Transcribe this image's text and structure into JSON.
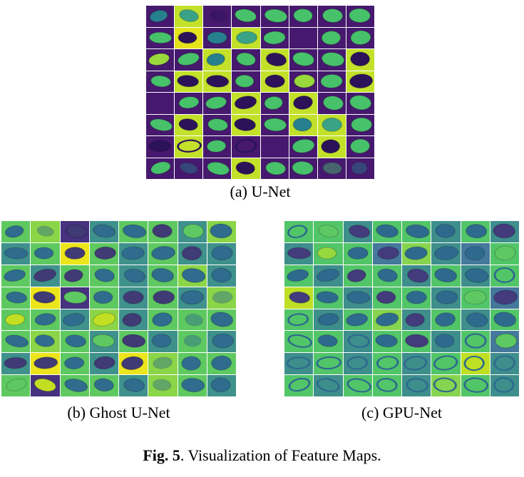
{
  "figure": {
    "captions": {
      "a": "(a) U-Net",
      "b": "(b) Ghost U-Net",
      "c": "(c) GPU-Net"
    },
    "fig_label": "Fig. 5",
    "fig_text": ". Visualization of Feature Maps."
  },
  "grids": {
    "a": {
      "cols": 8,
      "rows": 8,
      "palette": [
        "#46196e",
        "#c3e12b",
        "#48c16b",
        "#27808e",
        "#2c1259",
        "#9ad93c",
        "#e5e41c",
        "#3aa387"
      ],
      "cells": [
        [
          0,
          3,
          0
        ],
        [
          1,
          7,
          0
        ],
        [
          0,
          4,
          1
        ],
        [
          0,
          2,
          0
        ],
        [
          0,
          2,
          0
        ],
        [
          0,
          2,
          0
        ],
        [
          0,
          2,
          0
        ],
        [
          0,
          2,
          0
        ],
        [
          0,
          2,
          0
        ],
        [
          6,
          4,
          0
        ],
        [
          0,
          3,
          0
        ],
        [
          1,
          7,
          0
        ],
        [
          0,
          2,
          0
        ],
        [
          0,
          0,
          3
        ],
        [
          0,
          2,
          0
        ],
        [
          0,
          2,
          0
        ],
        [
          0,
          5,
          0
        ],
        [
          0,
          2,
          0
        ],
        [
          1,
          3,
          0
        ],
        [
          0,
          2,
          0
        ],
        [
          1,
          4,
          0
        ],
        [
          0,
          2,
          0
        ],
        [
          0,
          2,
          0
        ],
        [
          1,
          4,
          0
        ],
        [
          0,
          2,
          0
        ],
        [
          1,
          4,
          0
        ],
        [
          1,
          4,
          0
        ],
        [
          0,
          2,
          0
        ],
        [
          1,
          4,
          0
        ],
        [
          0,
          5,
          0
        ],
        [
          0,
          2,
          0
        ],
        [
          1,
          4,
          0
        ],
        [
          0,
          0,
          3
        ],
        [
          0,
          2,
          0
        ],
        [
          0,
          2,
          0
        ],
        [
          1,
          4,
          0
        ],
        [
          0,
          2,
          0
        ],
        [
          1,
          4,
          0
        ],
        [
          0,
          2,
          0
        ],
        [
          0,
          2,
          0
        ],
        [
          0,
          2,
          0
        ],
        [
          1,
          4,
          0
        ],
        [
          0,
          2,
          0
        ],
        [
          1,
          4,
          0
        ],
        [
          0,
          2,
          0
        ],
        [
          1,
          3,
          0
        ],
        [
          1,
          7,
          0
        ],
        [
          0,
          2,
          0
        ],
        [
          0,
          4,
          0
        ],
        [
          1,
          4,
          2
        ],
        [
          0,
          2,
          0
        ],
        [
          0,
          4,
          2
        ],
        [
          0,
          0,
          3
        ],
        [
          0,
          2,
          0
        ],
        [
          1,
          4,
          0
        ],
        [
          0,
          2,
          0
        ],
        [
          0,
          2,
          0
        ],
        [
          0,
          3,
          1
        ],
        [
          0,
          2,
          0
        ],
        [
          1,
          4,
          0
        ],
        [
          0,
          2,
          0
        ],
        [
          0,
          2,
          0
        ],
        [
          0,
          2,
          1
        ],
        [
          0,
          3,
          1
        ]
      ]
    },
    "b": {
      "cols": 8,
      "rows": 8,
      "palette": [
        "#5fc961",
        "#3f918c",
        "#46327e",
        "#ece51b",
        "#2f6c8e",
        "#403a75",
        "#5ec962",
        "#c2df23",
        "#8bd548"
      ],
      "cells": [
        [
          0,
          4,
          0
        ],
        [
          8,
          4,
          1
        ],
        [
          2,
          5,
          0
        ],
        [
          1,
          4,
          0
        ],
        [
          0,
          4,
          0
        ],
        [
          0,
          5,
          0
        ],
        [
          1,
          6,
          0
        ],
        [
          8,
          4,
          0
        ],
        [
          1,
          4,
          0
        ],
        [
          0,
          4,
          0
        ],
        [
          3,
          5,
          0
        ],
        [
          0,
          5,
          0
        ],
        [
          1,
          4,
          0
        ],
        [
          0,
          4,
          0
        ],
        [
          1,
          5,
          0
        ],
        [
          1,
          4,
          0
        ],
        [
          0,
          4,
          0
        ],
        [
          1,
          5,
          0
        ],
        [
          0,
          5,
          0
        ],
        [
          0,
          4,
          0
        ],
        [
          1,
          4,
          0
        ],
        [
          0,
          4,
          0
        ],
        [
          8,
          4,
          0
        ],
        [
          1,
          4,
          0
        ],
        [
          0,
          4,
          0
        ],
        [
          3,
          5,
          0
        ],
        [
          2,
          6,
          0
        ],
        [
          0,
          4,
          0
        ],
        [
          1,
          5,
          0
        ],
        [
          0,
          5,
          0
        ],
        [
          1,
          4,
          0
        ],
        [
          8,
          4,
          1
        ],
        [
          0,
          7,
          0
        ],
        [
          0,
          4,
          0
        ],
        [
          1,
          4,
          0
        ],
        [
          8,
          7,
          0
        ],
        [
          1,
          5,
          0
        ],
        [
          0,
          4,
          0
        ],
        [
          0,
          4,
          1
        ],
        [
          0,
          4,
          0
        ],
        [
          0,
          4,
          0
        ],
        [
          8,
          4,
          0
        ],
        [
          0,
          4,
          0
        ],
        [
          1,
          6,
          0
        ],
        [
          0,
          5,
          0
        ],
        [
          1,
          4,
          0
        ],
        [
          0,
          4,
          1
        ],
        [
          1,
          4,
          0
        ],
        [
          1,
          5,
          0
        ],
        [
          3,
          5,
          0
        ],
        [
          0,
          4,
          0
        ],
        [
          1,
          5,
          0
        ],
        [
          3,
          5,
          0
        ],
        [
          8,
          4,
          1
        ],
        [
          0,
          4,
          0
        ],
        [
          0,
          4,
          0
        ],
        [
          0,
          6,
          0
        ],
        [
          2,
          7,
          0
        ],
        [
          0,
          4,
          0
        ],
        [
          0,
          4,
          0
        ],
        [
          1,
          4,
          0
        ],
        [
          8,
          4,
          1
        ],
        [
          0,
          4,
          0
        ],
        [
          1,
          4,
          0
        ]
      ]
    },
    "c": {
      "cols": 8,
      "rows": 8,
      "palette": [
        "#52c569",
        "#3e8e8c",
        "#44799c",
        "#bfdf25",
        "#2e6a8e",
        "#433b7c",
        "#5ec962",
        "#97d83e",
        "#86d44f"
      ],
      "cells": [
        [
          0,
          4,
          2
        ],
        [
          0,
          6,
          0
        ],
        [
          1,
          5,
          0
        ],
        [
          0,
          4,
          0
        ],
        [
          0,
          4,
          0
        ],
        [
          1,
          4,
          0
        ],
        [
          0,
          4,
          0
        ],
        [
          1,
          5,
          0
        ],
        [
          1,
          5,
          0
        ],
        [
          0,
          7,
          0
        ],
        [
          0,
          4,
          0
        ],
        [
          2,
          5,
          0
        ],
        [
          8,
          4,
          0
        ],
        [
          1,
          4,
          0
        ],
        [
          2,
          4,
          0
        ],
        [
          0,
          6,
          0
        ],
        [
          0,
          4,
          0
        ],
        [
          1,
          4,
          0
        ],
        [
          0,
          5,
          0
        ],
        [
          0,
          4,
          0
        ],
        [
          1,
          5,
          0
        ],
        [
          0,
          4,
          0
        ],
        [
          1,
          4,
          0
        ],
        [
          0,
          4,
          2
        ],
        [
          3,
          5,
          0
        ],
        [
          0,
          4,
          0
        ],
        [
          1,
          4,
          0
        ],
        [
          0,
          5,
          0
        ],
        [
          0,
          4,
          0
        ],
        [
          1,
          4,
          0
        ],
        [
          0,
          6,
          0
        ],
        [
          2,
          5,
          0
        ],
        [
          0,
          4,
          2
        ],
        [
          1,
          4,
          0
        ],
        [
          0,
          4,
          0
        ],
        [
          8,
          4,
          0
        ],
        [
          1,
          5,
          0
        ],
        [
          0,
          4,
          0
        ],
        [
          1,
          4,
          0
        ],
        [
          0,
          4,
          0
        ],
        [
          0,
          4,
          2
        ],
        [
          0,
          4,
          0
        ],
        [
          1,
          4,
          2
        ],
        [
          0,
          4,
          0
        ],
        [
          0,
          5,
          0
        ],
        [
          1,
          4,
          0
        ],
        [
          0,
          4,
          2
        ],
        [
          2,
          6,
          0
        ],
        [
          1,
          4,
          2
        ],
        [
          0,
          4,
          2
        ],
        [
          1,
          4,
          2
        ],
        [
          0,
          4,
          2
        ],
        [
          1,
          4,
          2
        ],
        [
          0,
          4,
          2
        ],
        [
          3,
          4,
          2
        ],
        [
          1,
          4,
          2
        ],
        [
          0,
          4,
          2
        ],
        [
          1,
          4,
          2
        ],
        [
          0,
          4,
          2
        ],
        [
          0,
          4,
          2
        ],
        [
          1,
          4,
          2
        ],
        [
          8,
          4,
          2
        ],
        [
          0,
          4,
          2
        ],
        [
          1,
          4,
          2
        ]
      ]
    }
  }
}
